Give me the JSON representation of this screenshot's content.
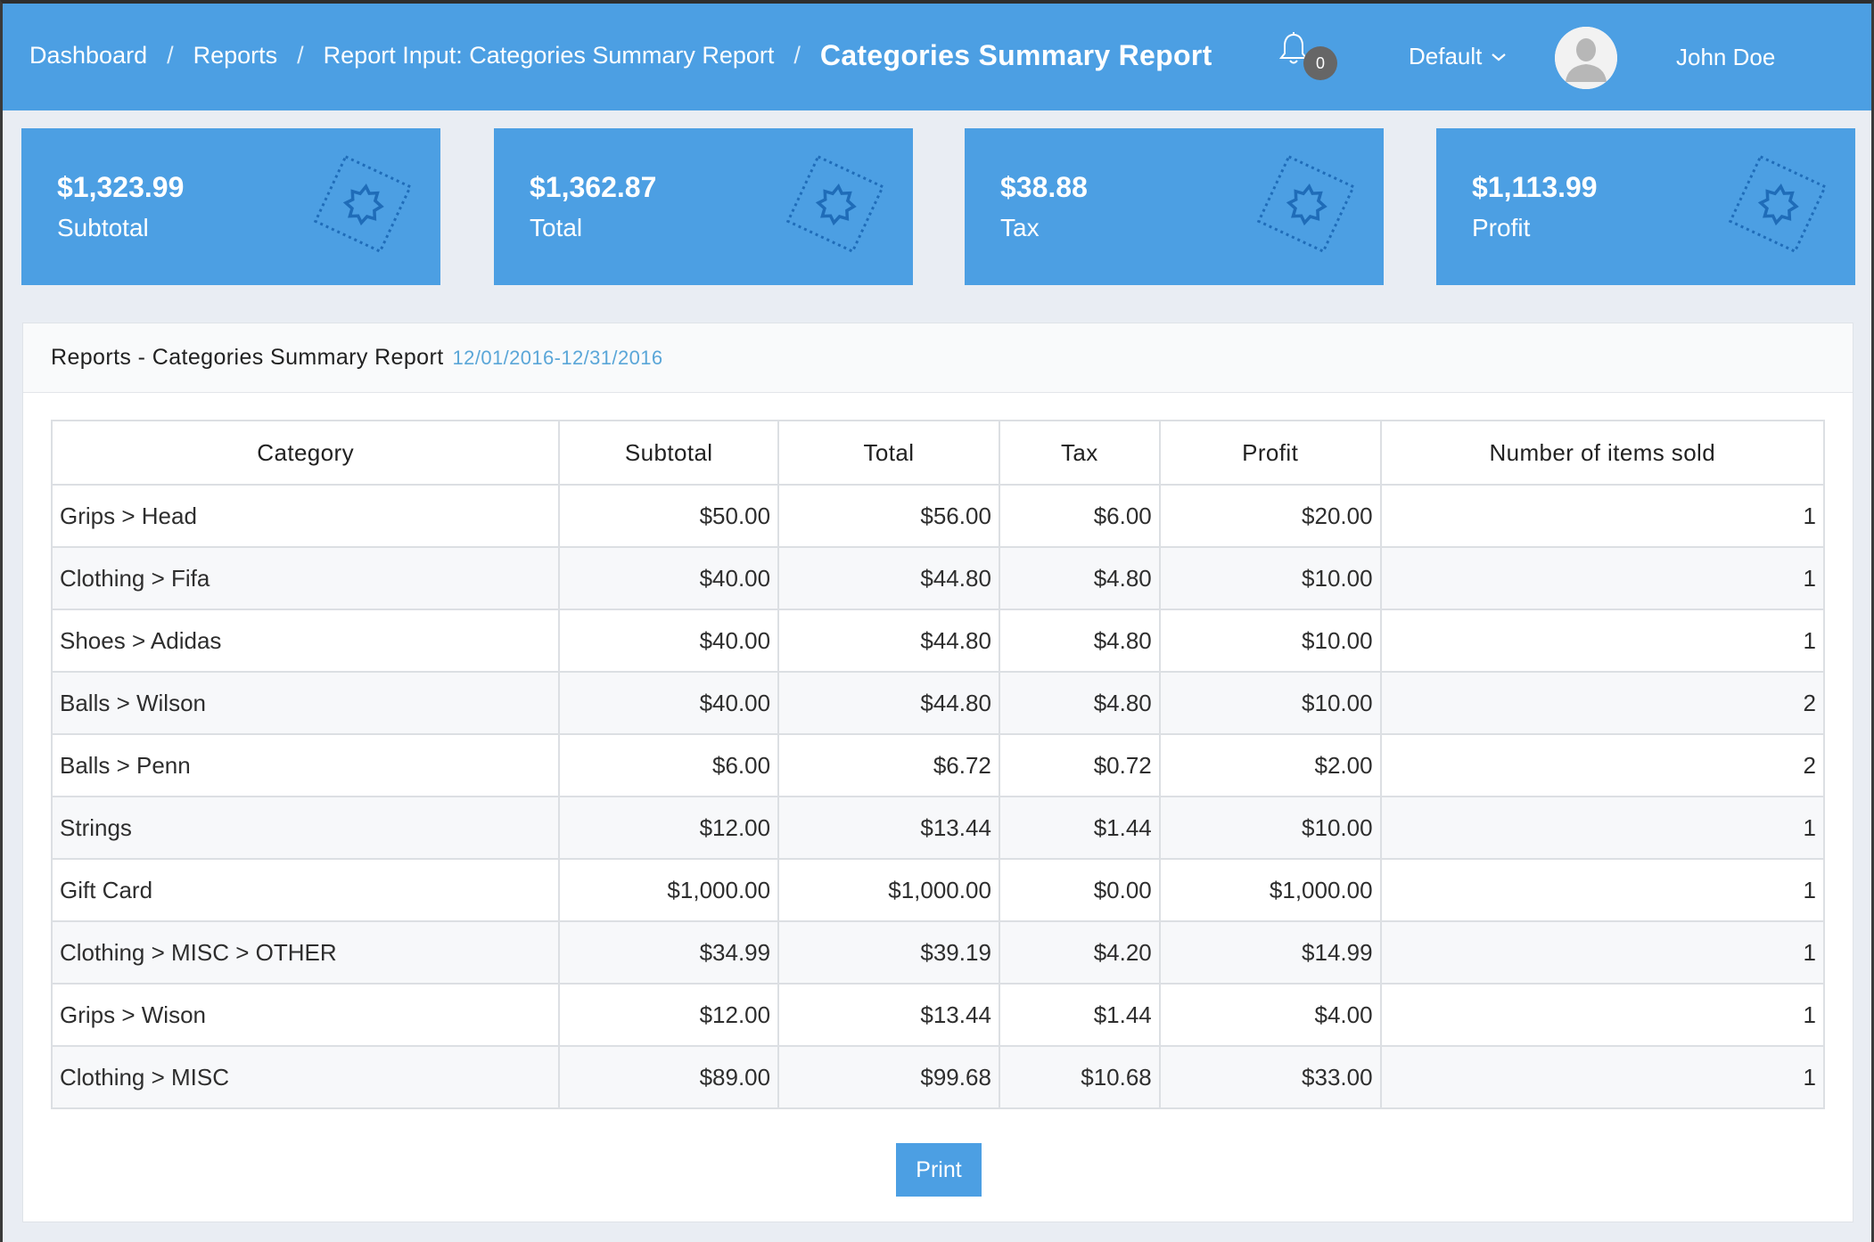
{
  "header": {
    "breadcrumbs": [
      "Dashboard",
      "Reports",
      "Report Input: Categories Summary Report"
    ],
    "current": "Categories Summary Report",
    "notifications_count": "0",
    "dropdown_label": "Default",
    "user_name": "John Doe"
  },
  "cards": [
    {
      "value": "$1,323.99",
      "label": "Subtotal",
      "icon": "gear-badge-icon"
    },
    {
      "value": "$1,362.87",
      "label": "Total",
      "icon": "gear-badge-icon"
    },
    {
      "value": "$38.88",
      "label": "Tax",
      "icon": "gear-badge-icon"
    },
    {
      "value": "$1,113.99",
      "label": "Profit",
      "icon": "gear-badge-icon"
    }
  ],
  "panel": {
    "title": "Reports - Categories Summary Report",
    "date_range": "12/01/2016-12/31/2016"
  },
  "table": {
    "columns": [
      "Category",
      "Subtotal",
      "Total",
      "Tax",
      "Profit",
      "Number of items sold"
    ],
    "rows": [
      [
        "Grips > Head",
        "$50.00",
        "$56.00",
        "$6.00",
        "$20.00",
        "1"
      ],
      [
        "Clothing > Fifa",
        "$40.00",
        "$44.80",
        "$4.80",
        "$10.00",
        "1"
      ],
      [
        "Shoes > Adidas",
        "$40.00",
        "$44.80",
        "$4.80",
        "$10.00",
        "1"
      ],
      [
        "Balls > Wilson",
        "$40.00",
        "$44.80",
        "$4.80",
        "$10.00",
        "2"
      ],
      [
        "Balls > Penn",
        "$6.00",
        "$6.72",
        "$0.72",
        "$2.00",
        "2"
      ],
      [
        "Strings",
        "$12.00",
        "$13.44",
        "$1.44",
        "$10.00",
        "1"
      ],
      [
        "Gift Card",
        "$1,000.00",
        "$1,000.00",
        "$0.00",
        "$1,000.00",
        "1"
      ],
      [
        "Clothing > MISC > OTHER",
        "$34.99",
        "$39.19",
        "$4.20",
        "$14.99",
        "1"
      ],
      [
        "Grips > Wison",
        "$12.00",
        "$13.44",
        "$1.44",
        "$4.00",
        "1"
      ],
      [
        "Clothing > MISC",
        "$89.00",
        "$99.68",
        "$10.68",
        "$33.00",
        "1"
      ]
    ]
  },
  "print_label": "Print",
  "colors": {
    "primary": "#4c9fe3",
    "background": "#e9edf3",
    "accent_text": "#5aa6d8"
  }
}
